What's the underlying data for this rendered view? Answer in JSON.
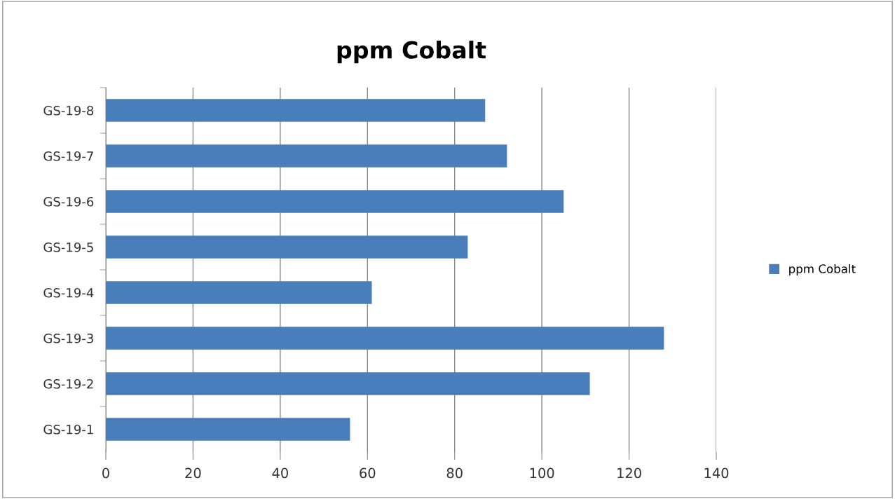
{
  "chart_data": {
    "type": "bar",
    "orientation": "horizontal",
    "title": "ppm Cobalt",
    "categories": [
      "GS-19-8",
      "GS-19-7",
      "GS-19-6",
      "GS-19-5",
      "GS-19-4",
      "GS-19-3",
      "GS-19-2",
      "GS-19-1"
    ],
    "series": [
      {
        "name": "ppm Cobalt",
        "color": "#4a7ebb",
        "values": [
          87,
          92,
          105,
          83,
          61,
          128,
          111,
          56
        ]
      }
    ],
    "xlim": [
      0,
      140
    ],
    "xticks": [
      0,
      20,
      40,
      60,
      80,
      100,
      120,
      140
    ],
    "grid": "x",
    "legend": "right"
  }
}
